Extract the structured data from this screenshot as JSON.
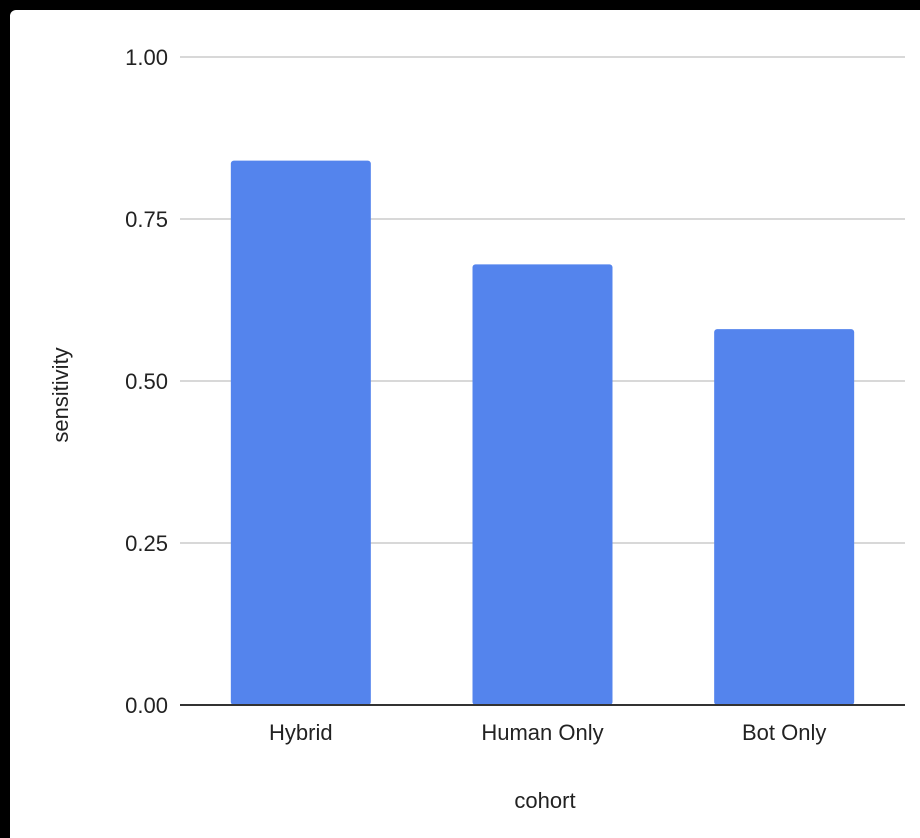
{
  "chart_data": {
    "type": "bar",
    "categories": [
      "Hybrid",
      "Human Only",
      "Bot Only"
    ],
    "values": [
      0.84,
      0.68,
      0.58
    ],
    "ylim": [
      0,
      1
    ],
    "yticks": [
      "0.00",
      "0.25",
      "0.50",
      "0.75",
      "1.00"
    ],
    "xlabel": "cohort",
    "ylabel": "sensitivity",
    "grid": true,
    "legend": "none",
    "bar_color": "#5484ED",
    "gridline_color": "#cccccc",
    "axis_color": "#333333",
    "background": "#ffffff",
    "frame_color": "#000000"
  }
}
